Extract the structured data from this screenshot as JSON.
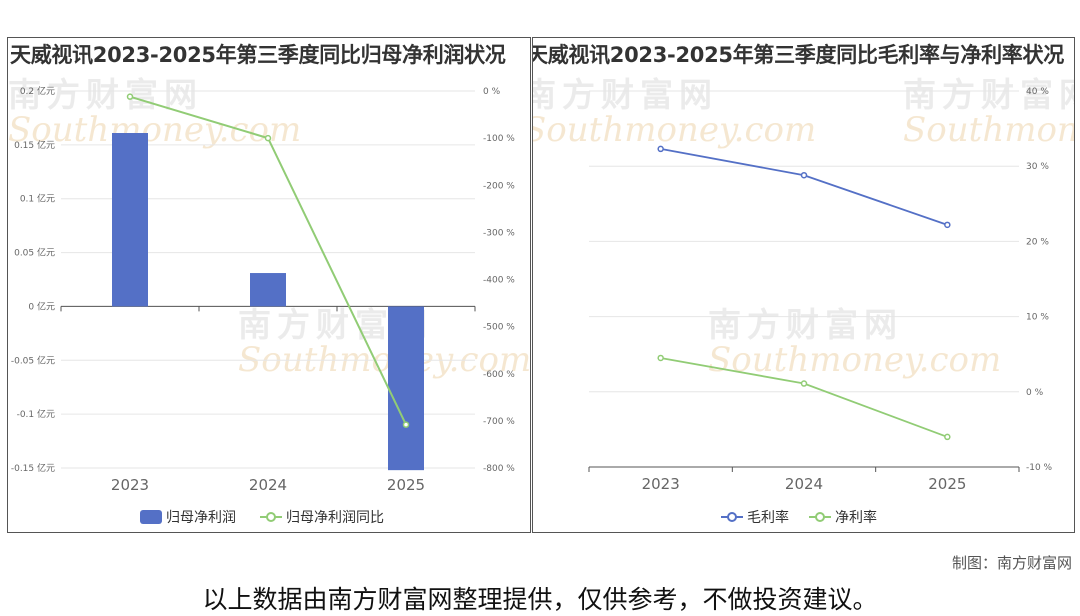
{
  "credit": "制图：南方财富网",
  "disclaimer": "以上数据由南方财富网整理提供，仅供参考，不做投资建议。",
  "watermark": {
    "cn": "南方财富网",
    "en": "Southmoney.com"
  },
  "colors": {
    "bar": "#5470c6",
    "green_line": "#91cc75",
    "blue_line": "#5470c6"
  },
  "chart_data": [
    {
      "type": "bar",
      "title": "天威视讯2023-2025年第三季度同比归母净利润状况",
      "categories": [
        "2023",
        "2024",
        "2025"
      ],
      "series": [
        {
          "name": "归母净利润",
          "type": "bar",
          "axis": "left",
          "values": [
            0.161,
            0.031,
            -0.152
          ]
        },
        {
          "name": "归母净利润同比",
          "type": "line",
          "axis": "right",
          "values": [
            -12,
            -100,
            -708
          ]
        }
      ],
      "ylim_left": [
        -0.15,
        0.2
      ],
      "yticks_left": [
        "0.2 亿元",
        "0.15 亿元",
        "0.1 亿元",
        "0.05 亿元",
        "0 亿元",
        "-0.05 亿元",
        "-0.1 亿元",
        "-0.15 亿元"
      ],
      "ylim_right": [
        -800,
        0
      ],
      "yticks_right": [
        "0 %",
        "-100 %",
        "-200 %",
        "-300 %",
        "-400 %",
        "-500 %",
        "-600 %",
        "-700 %",
        "-800 %"
      ],
      "legend": [
        "归母净利润",
        "归母净利润同比"
      ],
      "legend_position": "bottom",
      "grid": true
    },
    {
      "type": "line",
      "title": "天威视讯2023-2025年第三季度同比毛利率与净利率状况",
      "categories": [
        "2023",
        "2024",
        "2025"
      ],
      "series": [
        {
          "name": "毛利率",
          "values": [
            32.3,
            28.8,
            22.2
          ]
        },
        {
          "name": "净利率",
          "values": [
            4.5,
            1.1,
            -6.0
          ]
        }
      ],
      "ylim": [
        -10,
        40
      ],
      "yticks": [
        "40 %",
        "30 %",
        "20 %",
        "10 %",
        "0 %",
        "-10 %"
      ],
      "legend": [
        "毛利率",
        "净利率"
      ],
      "legend_position": "bottom",
      "grid": true
    }
  ]
}
